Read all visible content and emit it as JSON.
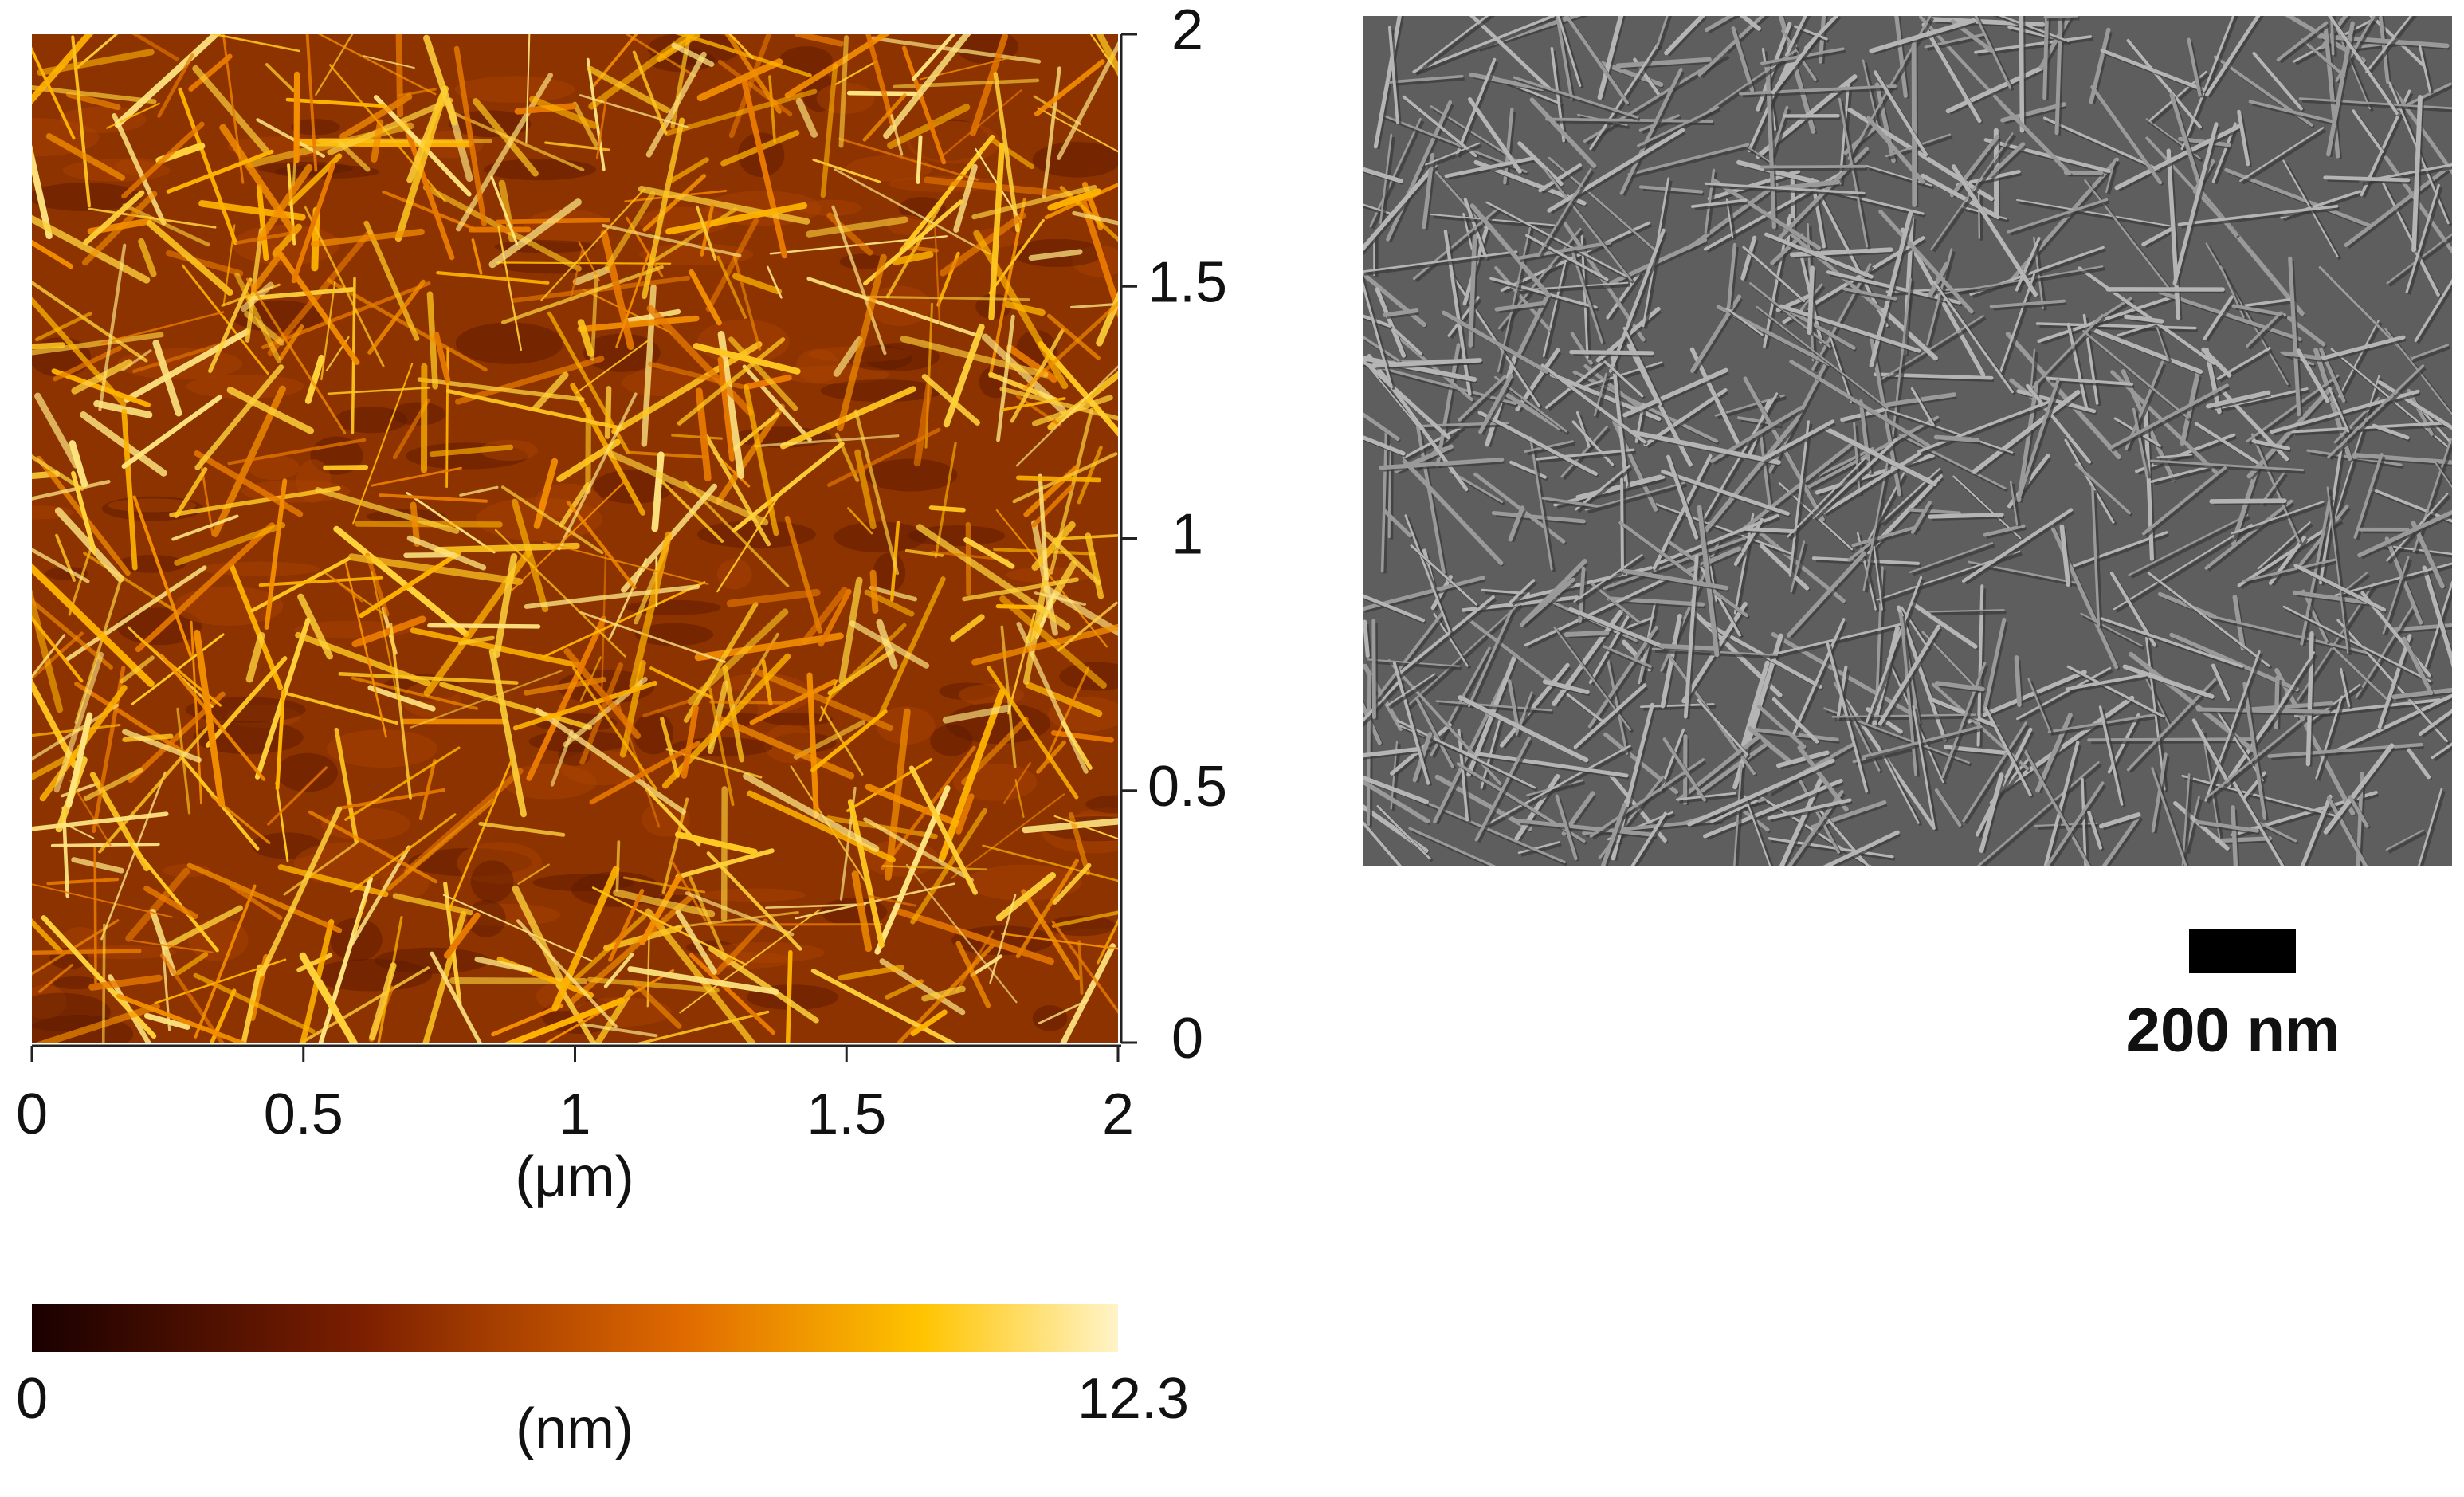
{
  "afm": {
    "x_axis": {
      "ticks": [
        0,
        0.5,
        1,
        1.5,
        2
      ],
      "lim": [
        0,
        2
      ],
      "label": "(μm)"
    },
    "y_axis": {
      "ticks": [
        0,
        0.5,
        1,
        1.5,
        2
      ],
      "lim": [
        0,
        2
      ]
    },
    "colorbar": {
      "min": 0,
      "max": 12.3,
      "label": "(nm)"
    }
  },
  "sem": {
    "scale_bar": "200 nm"
  }
}
